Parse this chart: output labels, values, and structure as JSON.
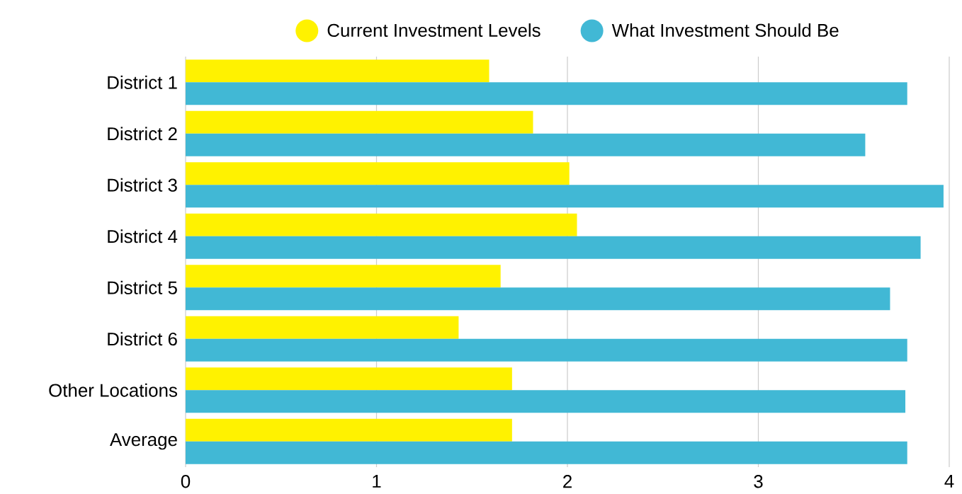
{
  "chart_data": {
    "type": "bar",
    "orientation": "horizontal",
    "categories": [
      "District 1",
      "District 2",
      "District 3",
      "District 4",
      "District 5",
      "District 6",
      "Other Locations",
      "Average"
    ],
    "series": [
      {
        "name": "Current Investment Levels",
        "color": "#fff200",
        "values": [
          1.59,
          1.82,
          2.01,
          2.05,
          1.65,
          1.43,
          1.71,
          1.71
        ]
      },
      {
        "name": "What Investment Should Be",
        "color": "#41b8d5",
        "values": [
          3.78,
          3.56,
          3.97,
          3.85,
          3.69,
          3.78,
          3.77,
          3.78
        ]
      }
    ],
    "xlim": [
      0,
      4
    ],
    "xticks": [
      0,
      1,
      2,
      3,
      4
    ],
    "grid": "x",
    "legend": "top"
  }
}
